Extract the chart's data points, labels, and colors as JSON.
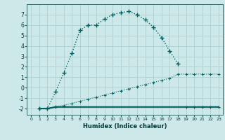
{
  "xlabel": "Humidex (Indice chaleur)",
  "bg_color": "#cce8e8",
  "grid_color": "#aed0d0",
  "line_color": "#006060",
  "xlim": [
    -0.5,
    23.5
  ],
  "ylim": [
    -2.6,
    8.0
  ],
  "xticks": [
    0,
    1,
    2,
    3,
    4,
    5,
    6,
    7,
    8,
    9,
    10,
    11,
    12,
    13,
    14,
    15,
    16,
    17,
    18,
    19,
    20,
    21,
    22,
    23
  ],
  "yticks": [
    -2,
    -1,
    0,
    1,
    2,
    3,
    4,
    5,
    6,
    7
  ],
  "line1_x": [
    1,
    2,
    3,
    4,
    5,
    6,
    7,
    8,
    9,
    10,
    11,
    12,
    13,
    14,
    15,
    16,
    17,
    18
  ],
  "line1_y": [
    -2.0,
    -2.0,
    -0.4,
    1.4,
    3.3,
    5.5,
    6.0,
    6.0,
    6.6,
    7.0,
    7.2,
    7.3,
    7.0,
    6.5,
    5.8,
    4.8,
    3.5,
    2.3
  ],
  "line2_x": [
    1,
    2,
    3,
    4,
    5,
    6,
    7,
    8,
    9,
    10,
    11,
    12,
    13,
    14,
    15,
    16,
    17,
    18,
    19,
    20,
    21,
    22,
    23
  ],
  "line2_y": [
    -2.0,
    -2.0,
    -1.8,
    -1.7,
    -1.5,
    -1.3,
    -1.1,
    -0.9,
    -0.7,
    -0.5,
    -0.3,
    -0.1,
    0.1,
    0.3,
    0.5,
    0.7,
    0.9,
    1.3,
    1.3,
    1.3,
    1.3,
    1.3,
    1.3
  ],
  "line3_x": [
    1,
    2,
    3,
    4,
    5,
    6,
    7,
    8,
    9,
    10,
    11,
    12,
    13,
    14,
    15,
    16,
    17,
    18,
    19,
    20,
    21,
    22,
    23
  ],
  "line3_y": [
    -2.0,
    -2.0,
    -1.85,
    -1.85,
    -1.85,
    -1.85,
    -1.85,
    -1.85,
    -1.85,
    -1.85,
    -1.85,
    -1.85,
    -1.85,
    -1.85,
    -1.85,
    -1.85,
    -1.85,
    -1.85,
    -1.85,
    -1.85,
    -1.85,
    -1.85,
    -1.85
  ]
}
